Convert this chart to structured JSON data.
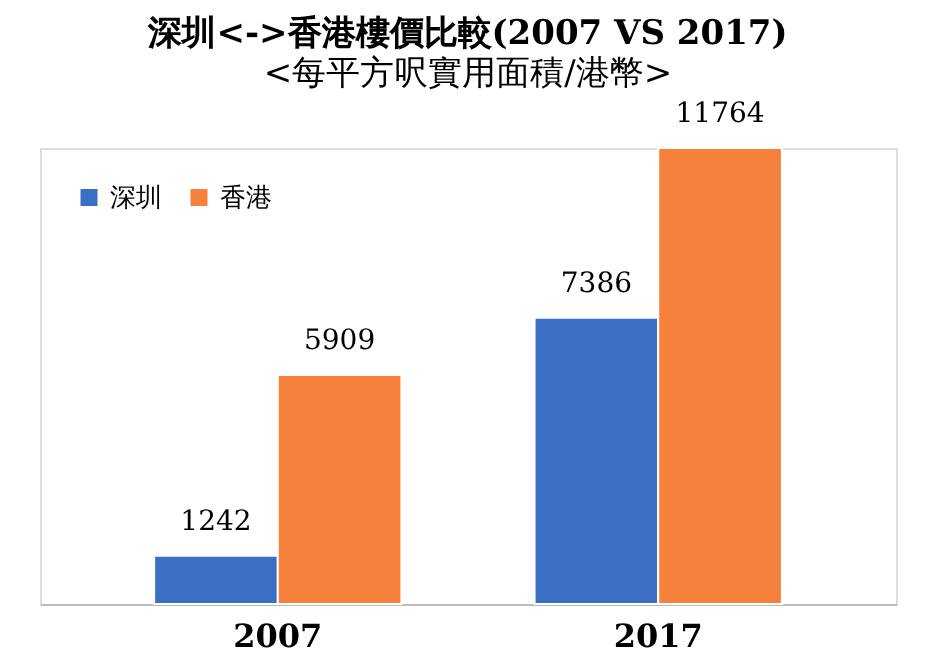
{
  "chart_data": {
    "type": "bar",
    "title": "深圳<->香港樓價比較(2007 VS 2017)",
    "subtitle": "<每平方呎實用面積/港幣>",
    "categories": [
      "2007",
      "2017"
    ],
    "series": [
      {
        "name": "深圳",
        "color": "#3a6fc4",
        "values": [
          1242,
          7386
        ]
      },
      {
        "name": "香港",
        "color": "#f5813c",
        "values": [
          5909,
          11764
        ]
      }
    ],
    "data_labels": true,
    "legend": "top left"
  }
}
